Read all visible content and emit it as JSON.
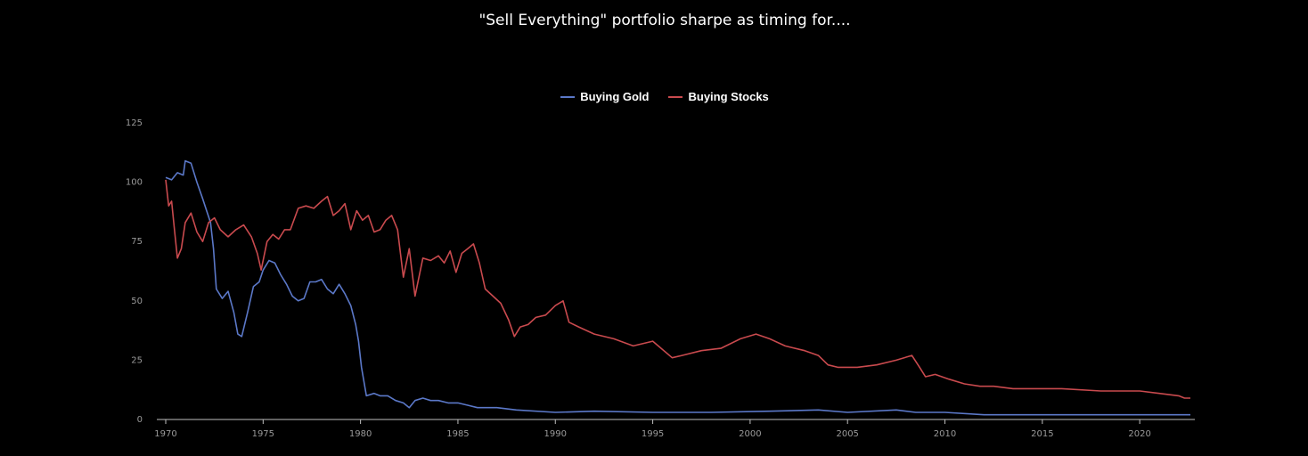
{
  "chart_data": {
    "type": "line",
    "title": "\"Sell Everything\" portfolio sharpe as timing for....",
    "xlabel": "",
    "ylabel": "",
    "xlim": [
      1970,
      2022.6
    ],
    "ylim": [
      0,
      125
    ],
    "x_ticks": [
      "1970",
      "1975",
      "1980",
      "1985",
      "1990",
      "1995",
      "2000",
      "2005",
      "2010",
      "2015",
      "2020"
    ],
    "y_ticks": [
      "0",
      "25",
      "50",
      "75",
      "100",
      "125"
    ],
    "grid": false,
    "legend_position": "top-center",
    "series": [
      {
        "name": "Buying Gold",
        "color": "#5b78c8",
        "x": [
          1970,
          1970.3,
          1970.6,
          1970.9,
          1971.0,
          1971.3,
          1971.6,
          1971.9,
          1972.1,
          1972.3,
          1972.45,
          1972.6,
          1972.9,
          1973.2,
          1973.5,
          1973.7,
          1973.9,
          1974.2,
          1974.5,
          1974.8,
          1975.0,
          1975.3,
          1975.6,
          1975.9,
          1976.2,
          1976.5,
          1976.8,
          1977.1,
          1977.4,
          1977.7,
          1978.0,
          1978.3,
          1978.6,
          1978.9,
          1979.2,
          1979.5,
          1979.75,
          1979.9,
          1980.05,
          1980.3,
          1980.7,
          1981.0,
          1981.4,
          1981.8,
          1982.2,
          1982.5,
          1982.8,
          1983.2,
          1983.6,
          1984.0,
          1984.5,
          1985.0,
          1985.5,
          1986.0,
          1987.0,
          1988.0,
          1990.0,
          1992.0,
          1995.0,
          1998.0,
          2001.0,
          2003.5,
          2005.0,
          2007.5,
          2008.5,
          2010.0,
          2012.0,
          2015.0,
          2020.0,
          2022.6
        ],
        "values": [
          102,
          101,
          104,
          103,
          109,
          108,
          100,
          93,
          88,
          83,
          72,
          55,
          51,
          54,
          45,
          36,
          35,
          45,
          56,
          58,
          63,
          67,
          66,
          61,
          57,
          52,
          50,
          51,
          58,
          58,
          59,
          55,
          53,
          57,
          53,
          48,
          40,
          33,
          22,
          10,
          11,
          10,
          10,
          8,
          7,
          5,
          8,
          9,
          8,
          8,
          7,
          7,
          6,
          5,
          5,
          4,
          3,
          3.5,
          3,
          3,
          3.5,
          4,
          3,
          4,
          3,
          3,
          2,
          2,
          2,
          2
        ]
      },
      {
        "name": "Buying Stocks",
        "color": "#c94a4e",
        "x": [
          1970,
          1970.15,
          1970.3,
          1970.45,
          1970.6,
          1970.8,
          1971.0,
          1971.3,
          1971.6,
          1971.9,
          1972.2,
          1972.5,
          1972.8,
          1973.2,
          1973.6,
          1974.0,
          1974.4,
          1974.7,
          1974.9,
          1975.2,
          1975.5,
          1975.8,
          1976.1,
          1976.4,
          1976.8,
          1977.2,
          1977.6,
          1978.0,
          1978.3,
          1978.6,
          1978.9,
          1979.2,
          1979.5,
          1979.8,
          1980.1,
          1980.4,
          1980.7,
          1981.0,
          1981.3,
          1981.6,
          1981.9,
          1982.2,
          1982.5,
          1982.8,
          1983.2,
          1983.6,
          1984.0,
          1984.3,
          1984.6,
          1984.9,
          1985.2,
          1985.5,
          1985.8,
          1986.1,
          1986.4,
          1986.8,
          1987.2,
          1987.6,
          1987.9,
          1988.2,
          1988.6,
          1989.0,
          1989.5,
          1990.0,
          1990.4,
          1990.7,
          1991.2,
          1992.0,
          1993.0,
          1994.0,
          1995.0,
          1996.0,
          1996.5,
          1997.5,
          1998.5,
          1999.5,
          2000.3,
          2001.0,
          2001.8,
          2002.8,
          2003.5,
          2004.0,
          2004.5,
          2005.5,
          2006.5,
          2007.5,
          2008.3,
          2008.7,
          2009.0,
          2009.5,
          2010.2,
          2011.0,
          2011.8,
          2012.5,
          2013.5,
          2014.5,
          2016.0,
          2018.0,
          2020.0,
          2021.0,
          2022.0,
          2022.3,
          2022.6
        ],
        "values": [
          101,
          90,
          92,
          80,
          68,
          72,
          83,
          87,
          79,
          75,
          83,
          85,
          80,
          77,
          80,
          82,
          77,
          70,
          63,
          75,
          78,
          76,
          80,
          80,
          89,
          90,
          89,
          92,
          94,
          86,
          88,
          91,
          80,
          88,
          84,
          86,
          79,
          80,
          84,
          86,
          80,
          60,
          72,
          52,
          68,
          67,
          69,
          66,
          71,
          62,
          70,
          72,
          74,
          66,
          55,
          52,
          49,
          42,
          35,
          39,
          40,
          43,
          44,
          48,
          50,
          41,
          39,
          36,
          34,
          31,
          33,
          26,
          27,
          29,
          30,
          34,
          36,
          34,
          31,
          29,
          27,
          23,
          22,
          22,
          23,
          25,
          27,
          22,
          18,
          19,
          17,
          15,
          14,
          14,
          13,
          13,
          13,
          12,
          12,
          11,
          10,
          9,
          9
        ]
      }
    ]
  }
}
